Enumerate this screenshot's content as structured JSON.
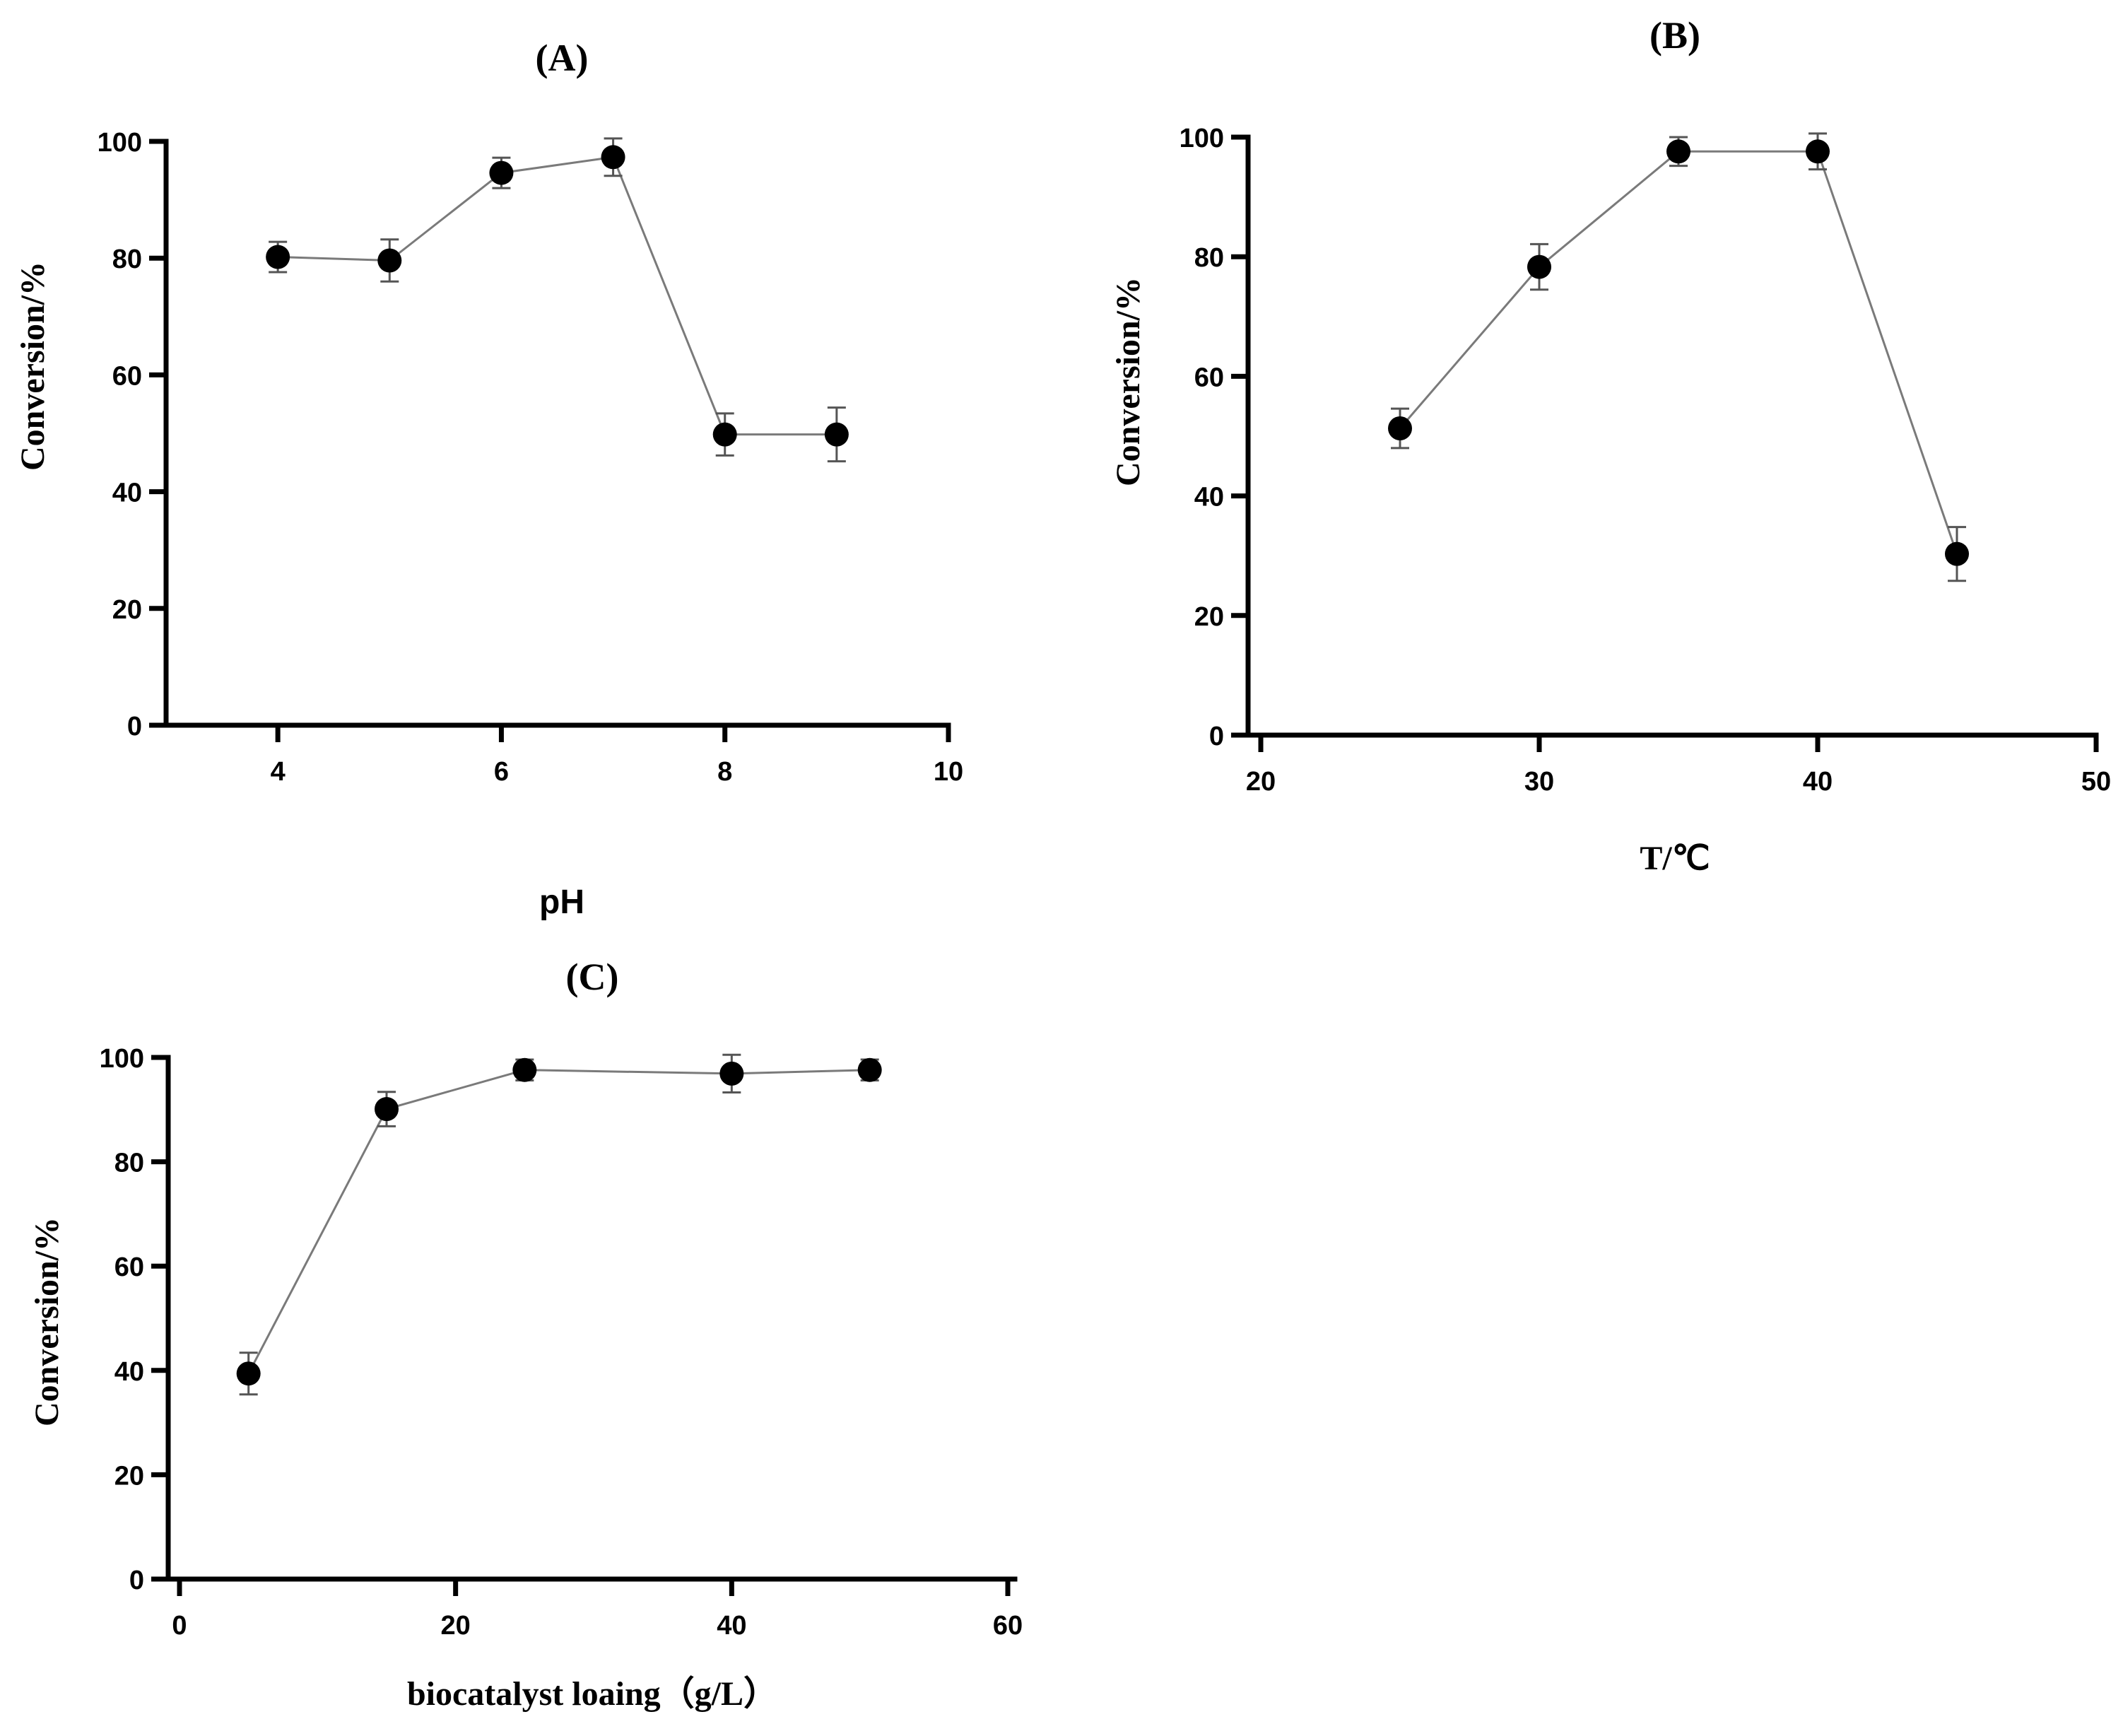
{
  "chart_data": [
    {
      "type": "line",
      "title": "(A)",
      "xlabel": "pH",
      "ylabel": "Conversion/%",
      "xlim": [
        3,
        10
      ],
      "ylim": [
        0,
        100
      ],
      "xticks": [
        4,
        6,
        8,
        10
      ],
      "yticks": [
        0,
        20,
        40,
        60,
        80,
        100
      ],
      "grid": false,
      "series": [
        {
          "name": "Conversion",
          "x": [
            4,
            5,
            6,
            7,
            8,
            9
          ],
          "y": [
            80.2,
            79.6,
            94.6,
            97.3,
            49.8,
            49.8
          ],
          "err": [
            2.6,
            3.6,
            2.6,
            3.2,
            3.6,
            4.6
          ]
        }
      ]
    },
    {
      "type": "line",
      "title": "(B)",
      "xlabel": "T/℃",
      "ylabel": "Conversion/%",
      "xlim": [
        20,
        50
      ],
      "ylim": [
        0,
        100
      ],
      "xticks": [
        20,
        30,
        40,
        50
      ],
      "yticks": [
        0,
        20,
        40,
        60,
        80,
        100
      ],
      "grid": false,
      "series": [
        {
          "name": "Conversion",
          "x": [
            25,
            30,
            35,
            40,
            45
          ],
          "y": [
            51.3,
            78.3,
            97.6,
            97.6,
            30.3
          ],
          "err": [
            3.3,
            3.8,
            2.4,
            3.0,
            4.5
          ]
        }
      ]
    },
    {
      "type": "line",
      "title": "(C)",
      "xlabel": "biocatalyst loaing（g/L）",
      "ylabel": "Conversion/%",
      "xlim": [
        0,
        60
      ],
      "ylim": [
        0,
        100
      ],
      "xticks": [
        0,
        20,
        40,
        60
      ],
      "yticks": [
        0,
        20,
        40,
        60,
        80,
        100
      ],
      "grid": false,
      "series": [
        {
          "name": "Conversion",
          "x": [
            5,
            15,
            25,
            40,
            50
          ],
          "y": [
            39.4,
            90.1,
            97.6,
            96.9,
            97.6
          ],
          "err": [
            4.0,
            3.3,
            2.0,
            3.6,
            2.0
          ]
        }
      ]
    }
  ]
}
